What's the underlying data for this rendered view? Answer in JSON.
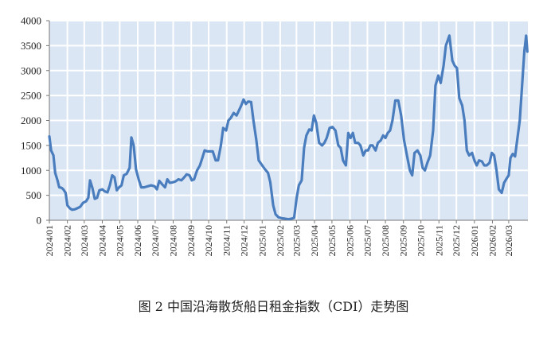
{
  "caption": "图 2 中国沿海散货船日租金指数（CDI）走势图",
  "chart_data": {
    "type": "line",
    "title": "",
    "xlabel": "",
    "ylabel": "",
    "ylim": [
      0,
      4000
    ],
    "yticks": [
      0,
      500,
      1000,
      1500,
      2000,
      2500,
      3000,
      3500,
      4000
    ],
    "x_ticks": [
      "2024/01",
      "2024/02",
      "2024/03",
      "2024/04",
      "2024/05",
      "2024/06",
      "2024/07",
      "2024/08",
      "2024/09",
      "2024/10",
      "2024/11",
      "2024/12",
      "2025/01",
      "2025/02",
      "2025/03",
      "2025/04",
      "2025/05",
      "2025/06",
      "2025/07",
      "2025/08",
      "2025/09",
      "2025/10",
      "2025/11",
      "2025/12",
      "2026/01",
      "2026/02",
      "2026/03"
    ],
    "grid": true,
    "legend": "none",
    "line_color": "#4a7dbe",
    "plot_background": "#dbe6f4",
    "grid_color": "#ffffff",
    "series": [
      {
        "values": [
          [
            "2024-01-01",
            1680
          ],
          [
            "2024-01-04",
            1400
          ],
          [
            "2024-01-08",
            1300
          ],
          [
            "2024-01-11",
            950
          ],
          [
            "2024-01-15",
            800
          ],
          [
            "2024-01-18",
            660
          ],
          [
            "2024-01-22",
            650
          ],
          [
            "2024-01-25",
            620
          ],
          [
            "2024-01-29",
            550
          ],
          [
            "2024-02-01",
            300
          ],
          [
            "2024-02-05",
            240
          ],
          [
            "2024-02-09",
            210
          ],
          [
            "2024-02-14",
            220
          ],
          [
            "2024-02-18",
            240
          ],
          [
            "2024-02-23",
            270
          ],
          [
            "2024-02-28",
            350
          ],
          [
            "2024-03-04",
            380
          ],
          [
            "2024-03-08",
            450
          ],
          [
            "2024-03-11",
            800
          ],
          [
            "2024-03-15",
            650
          ],
          [
            "2024-03-19",
            430
          ],
          [
            "2024-03-23",
            450
          ],
          [
            "2024-03-27",
            600
          ],
          [
            "2024-04-01",
            620
          ],
          [
            "2024-04-05",
            580
          ],
          [
            "2024-04-10",
            560
          ],
          [
            "2024-04-14",
            700
          ],
          [
            "2024-04-18",
            900
          ],
          [
            "2024-04-22",
            860
          ],
          [
            "2024-04-26",
            600
          ],
          [
            "2024-04-30",
            660
          ],
          [
            "2024-05-04",
            700
          ],
          [
            "2024-05-08",
            900
          ],
          [
            "2024-05-13",
            930
          ],
          [
            "2024-05-18",
            1050
          ],
          [
            "2024-05-21",
            1660
          ],
          [
            "2024-05-25",
            1500
          ],
          [
            "2024-05-29",
            1020
          ],
          [
            "2024-06-03",
            800
          ],
          [
            "2024-06-07",
            660
          ],
          [
            "2024-06-12",
            660
          ],
          [
            "2024-06-18",
            680
          ],
          [
            "2024-06-24",
            700
          ],
          [
            "2024-06-30",
            680
          ],
          [
            "2024-07-04",
            620
          ],
          [
            "2024-07-08",
            790
          ],
          [
            "2024-07-13",
            720
          ],
          [
            "2024-07-18",
            660
          ],
          [
            "2024-07-22",
            820
          ],
          [
            "2024-07-26",
            750
          ],
          [
            "2024-07-31",
            760
          ],
          [
            "2024-08-05",
            780
          ],
          [
            "2024-08-10",
            820
          ],
          [
            "2024-08-15",
            800
          ],
          [
            "2024-08-20",
            860
          ],
          [
            "2024-08-24",
            920
          ],
          [
            "2024-08-29",
            900
          ],
          [
            "2024-09-02",
            800
          ],
          [
            "2024-09-06",
            820
          ],
          [
            "2024-09-11",
            1000
          ],
          [
            "2024-09-16",
            1100
          ],
          [
            "2024-09-20",
            1250
          ],
          [
            "2024-09-24",
            1400
          ],
          [
            "2024-09-29",
            1380
          ],
          [
            "2024-10-04",
            1380
          ],
          [
            "2024-10-08",
            1380
          ],
          [
            "2024-10-13",
            1200
          ],
          [
            "2024-10-17",
            1200
          ],
          [
            "2024-10-22",
            1500
          ],
          [
            "2024-10-26",
            1850
          ],
          [
            "2024-10-31",
            1800
          ],
          [
            "2024-11-04",
            2000
          ],
          [
            "2024-11-08",
            2050
          ],
          [
            "2024-11-13",
            2150
          ],
          [
            "2024-11-18",
            2100
          ],
          [
            "2024-11-22",
            2200
          ],
          [
            "2024-11-26",
            2300
          ],
          [
            "2024-11-30",
            2420
          ],
          [
            "2024-12-04",
            2330
          ],
          [
            "2024-12-08",
            2380
          ],
          [
            "2024-12-13",
            2370
          ],
          [
            "2024-12-17",
            2000
          ],
          [
            "2024-12-22",
            1600
          ],
          [
            "2024-12-26",
            1200
          ],
          [
            "2025-01-01",
            1100
          ],
          [
            "2025-01-06",
            1020
          ],
          [
            "2025-01-11",
            950
          ],
          [
            "2025-01-15",
            760
          ],
          [
            "2025-01-20",
            300
          ],
          [
            "2025-01-24",
            120
          ],
          [
            "2025-01-29",
            60
          ],
          [
            "2025-02-04",
            40
          ],
          [
            "2025-02-10",
            30
          ],
          [
            "2025-02-15",
            20
          ],
          [
            "2025-02-20",
            30
          ],
          [
            "2025-02-25",
            50
          ],
          [
            "2025-03-01",
            430
          ],
          [
            "2025-03-05",
            700
          ],
          [
            "2025-03-10",
            800
          ],
          [
            "2025-03-14",
            1450
          ],
          [
            "2025-03-18",
            1700
          ],
          [
            "2025-03-23",
            1820
          ],
          [
            "2025-03-27",
            1800
          ],
          [
            "2025-03-31",
            2100
          ],
          [
            "2025-04-04",
            1950
          ],
          [
            "2025-04-09",
            1550
          ],
          [
            "2025-04-14",
            1500
          ],
          [
            "2025-04-18",
            1550
          ],
          [
            "2025-04-22",
            1650
          ],
          [
            "2025-04-27",
            1850
          ],
          [
            "2025-05-02",
            1870
          ],
          [
            "2025-05-07",
            1800
          ],
          [
            "2025-05-12",
            1500
          ],
          [
            "2025-05-16",
            1450
          ],
          [
            "2025-05-20",
            1200
          ],
          [
            "2025-05-25",
            1100
          ],
          [
            "2025-05-29",
            1750
          ],
          [
            "2025-06-02",
            1650
          ],
          [
            "2025-06-06",
            1750
          ],
          [
            "2025-06-10",
            1550
          ],
          [
            "2025-06-15",
            1550
          ],
          [
            "2025-06-19",
            1500
          ],
          [
            "2025-06-24",
            1300
          ],
          [
            "2025-06-28",
            1400
          ],
          [
            "2025-07-02",
            1400
          ],
          [
            "2025-07-06",
            1500
          ],
          [
            "2025-07-10",
            1500
          ],
          [
            "2025-07-15",
            1400
          ],
          [
            "2025-07-19",
            1550
          ],
          [
            "2025-07-24",
            1600
          ],
          [
            "2025-07-28",
            1700
          ],
          [
            "2025-08-01",
            1650
          ],
          [
            "2025-08-05",
            1750
          ],
          [
            "2025-08-09",
            1800
          ],
          [
            "2025-08-13",
            2000
          ],
          [
            "2025-08-18",
            2400
          ],
          [
            "2025-08-23",
            2400
          ],
          [
            "2025-08-28",
            2100
          ],
          [
            "2025-09-02",
            1600
          ],
          [
            "2025-09-07",
            1300
          ],
          [
            "2025-09-12",
            1000
          ],
          [
            "2025-09-16",
            900
          ],
          [
            "2025-09-20",
            1350
          ],
          [
            "2025-09-25",
            1400
          ],
          [
            "2025-09-30",
            1300
          ],
          [
            "2025-10-04",
            1050
          ],
          [
            "2025-10-08",
            1000
          ],
          [
            "2025-10-12",
            1150
          ],
          [
            "2025-10-17",
            1300
          ],
          [
            "2025-10-22",
            1800
          ],
          [
            "2025-10-26",
            2700
          ],
          [
            "2025-10-31",
            2900
          ],
          [
            "2025-11-04",
            2750
          ],
          [
            "2025-11-09",
            3100
          ],
          [
            "2025-11-13",
            3500
          ],
          [
            "2025-11-19",
            3700
          ],
          [
            "2025-11-24",
            3200
          ],
          [
            "2025-11-28",
            3100
          ],
          [
            "2025-12-02",
            3050
          ],
          [
            "2025-12-06",
            2450
          ],
          [
            "2025-12-11",
            2300
          ],
          [
            "2025-12-15",
            2000
          ],
          [
            "2025-12-19",
            1400
          ],
          [
            "2025-12-23",
            1300
          ],
          [
            "2025-12-28",
            1350
          ],
          [
            "2026-01-01",
            1200
          ],
          [
            "2026-01-05",
            1100
          ],
          [
            "2026-01-09",
            1200
          ],
          [
            "2026-01-14",
            1180
          ],
          [
            "2026-01-18",
            1100
          ],
          [
            "2026-01-22",
            1100
          ],
          [
            "2026-01-27",
            1150
          ],
          [
            "2026-01-31",
            1350
          ],
          [
            "2026-02-04",
            1300
          ],
          [
            "2026-02-08",
            1000
          ],
          [
            "2026-02-12",
            620
          ],
          [
            "2026-02-17",
            550
          ],
          [
            "2026-02-21",
            750
          ],
          [
            "2026-02-25",
            830
          ],
          [
            "2026-03-01",
            900
          ],
          [
            "2026-03-04",
            1250
          ],
          [
            "2026-03-08",
            1330
          ],
          [
            "2026-03-12",
            1280
          ],
          [
            "2026-03-16",
            1650
          ],
          [
            "2026-03-20",
            2000
          ],
          [
            "2026-03-24",
            2700
          ],
          [
            "2026-03-28",
            3400
          ],
          [
            "2026-03-31",
            3700
          ],
          [
            "2026-04-02",
            3380
          ]
        ]
      }
    ]
  }
}
